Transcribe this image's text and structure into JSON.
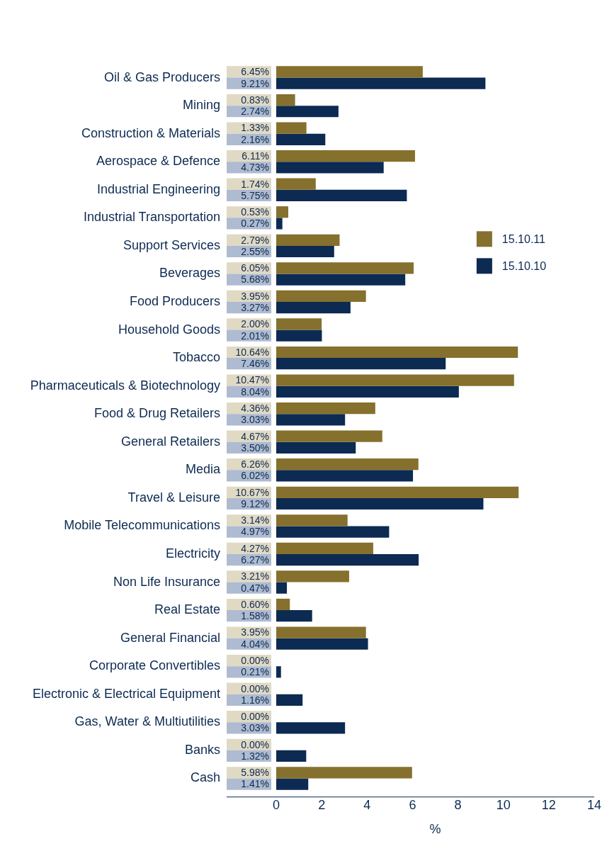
{
  "chart_data": {
    "type": "bar",
    "orientation": "horizontal",
    "xlabel": "%",
    "categories": [
      "Oil & Gas Producers",
      "Mining",
      "Construction & Materials",
      "Aerospace & Defence",
      "Industrial Engineering",
      "Industrial Transportation",
      "Support Services",
      "Beverages",
      "Food Producers",
      "Household Goods",
      "Tobacco",
      "Pharmaceuticals & Biotechnology",
      "Food & Drug Retailers",
      "General Retailers",
      "Media",
      "Travel & Leisure",
      "Mobile Telecommunications",
      "Electricity",
      "Non Life Insurance",
      "Real Estate",
      "General Financial",
      "Corporate Convertibles",
      "Electronic & Electrical Equipment",
      "Gas, Water & Multiutilities",
      "Banks",
      "Cash"
    ],
    "series": [
      {
        "name": "15.10.11",
        "color": "#85702e",
        "values": [
          6.45,
          0.83,
          1.33,
          6.11,
          1.74,
          0.53,
          2.79,
          6.05,
          3.95,
          2.0,
          10.64,
          10.47,
          4.36,
          4.67,
          6.26,
          10.67,
          3.14,
          4.27,
          3.21,
          0.6,
          3.95,
          0.0,
          0.0,
          0.0,
          0.0,
          5.98
        ],
        "value_labels": [
          "6.45%",
          "0.83%",
          "1.33%",
          "6.11%",
          "1.74%",
          "0.53%",
          "2.79%",
          "6.05%",
          "3.95%",
          "2.00%",
          "10.64%",
          "10.47%",
          "4.36%",
          "4.67%",
          "6.26%",
          "10.67%",
          "3.14%",
          "4.27%",
          "3.21%",
          "0.60%",
          "3.95%",
          "0.00%",
          "0.00%",
          "0.00%",
          "0.00%",
          "5.98%"
        ]
      },
      {
        "name": "15.10.10",
        "color": "#0c2a52",
        "values": [
          9.21,
          2.74,
          2.16,
          4.73,
          5.75,
          0.27,
          2.55,
          5.68,
          3.27,
          2.01,
          7.46,
          8.04,
          3.03,
          3.5,
          6.02,
          9.12,
          4.97,
          6.27,
          0.47,
          1.58,
          4.04,
          0.21,
          1.16,
          3.03,
          1.32,
          1.41
        ],
        "value_labels": [
          "9.21%",
          "2.74%",
          "2.16%",
          "4.73%",
          "5.75%",
          "0.27%",
          "2.55%",
          "5.68%",
          "3.27%",
          "2.01%",
          "7.46%",
          "8.04%",
          "3.03%",
          "3.50%",
          "6.02%",
          "9.12%",
          "4.97%",
          "6.27%",
          "0.47%",
          "1.58%",
          "4.04%",
          "0.21%",
          "1.16%",
          "3.03%",
          "1.32%",
          "1.41%"
        ]
      }
    ],
    "xlim": [
      0,
      14
    ],
    "xticks": [
      0,
      2,
      4,
      6,
      8,
      10,
      12,
      14
    ],
    "grid": false,
    "legend": "right"
  }
}
